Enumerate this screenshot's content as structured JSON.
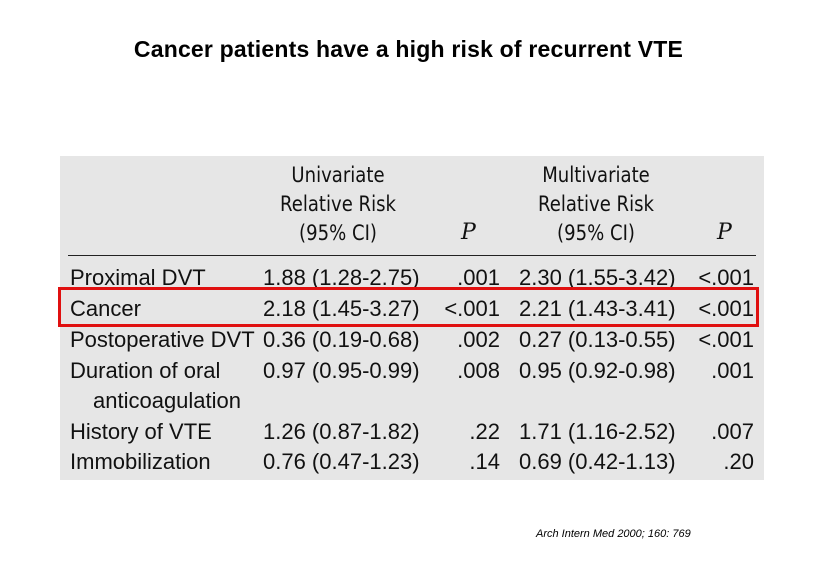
{
  "slide": {
    "title": "Cancer patients have a high risk of recurrent VTE",
    "citation": "Arch Intern Med 2000; 160: 769"
  },
  "table": {
    "headers": {
      "univariate": [
        "Univariate",
        "Relative Risk",
        "(95% CI)"
      ],
      "univariate_p": "P",
      "multivariate": [
        "Multivariate",
        "Relative Risk",
        "(95% CI)"
      ],
      "multivariate_p": "P"
    },
    "rows": [
      {
        "label": "Proximal DVT",
        "label2": "",
        "uni": "1.88 (1.28-2.75)",
        "up": ".001",
        "multi": "2.30 (1.55-3.42)",
        "mp": "<.001"
      },
      {
        "label": "Cancer",
        "label2": "",
        "uni": "2.18 (1.45-3.27)",
        "up": "<.001",
        "multi": "2.21 (1.43-3.41)",
        "mp": "<.001"
      },
      {
        "label": "Postoperative DVT",
        "label2": "",
        "uni": "0.36 (0.19-0.68)",
        "up": ".002",
        "multi": "0.27 (0.13-0.55)",
        "mp": "<.001"
      },
      {
        "label": "Duration of oral",
        "label2": "anticoagulation",
        "uni": "0.97 (0.95-0.99)",
        "up": ".008",
        "multi": "0.95 (0.92-0.98)",
        "mp": ".001"
      },
      {
        "label": "History of VTE",
        "label2": "",
        "uni": "1.26 (0.87-1.82)",
        "up": ".22",
        "multi": "1.71 (1.16-2.52)",
        "mp": ".007"
      },
      {
        "label": "Immobilization",
        "label2": "",
        "uni": "0.76 (0.47-1.23)",
        "up": ".14",
        "multi": "0.69 (0.42-1.13)",
        "mp": ".20"
      }
    ],
    "highlighted_row": "Cancer",
    "highlight_color": "#e01010",
    "panel_color": "#e6e6e6"
  }
}
